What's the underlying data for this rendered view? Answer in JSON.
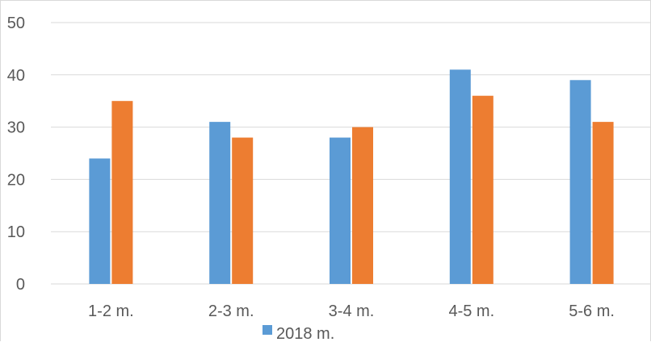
{
  "chart_data": {
    "type": "bar",
    "categories": [
      "1-2 m.",
      "2-3 m.",
      "3-4 m.",
      "4-5 m.",
      "5-6 m."
    ],
    "series": [
      {
        "name": "2018 m.",
        "values": [
          24,
          31,
          28,
          41,
          39
        ],
        "color": "#5b9bd5"
      },
      {
        "values": [
          35,
          28,
          30,
          36,
          31
        ],
        "color": "#ed7d31"
      }
    ],
    "yticks": [
      "0",
      "10",
      "20",
      "30",
      "40",
      "50"
    ],
    "ylim": [
      0,
      50
    ],
    "grid": true,
    "legend_position": "bottom",
    "gridline_color": "#d9d9d9"
  }
}
